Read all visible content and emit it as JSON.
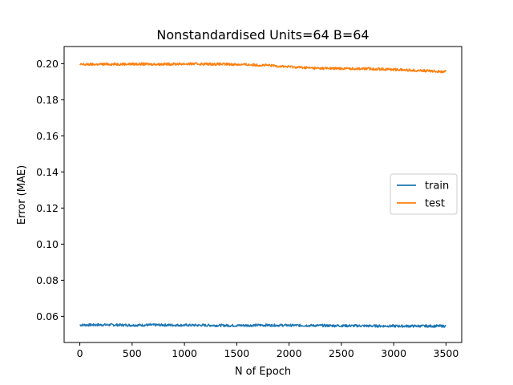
{
  "chart_data": {
    "type": "line",
    "title": "Nonstandardised Units=64 B=64",
    "xlabel": "N of Epoch",
    "ylabel": "Error (MAE)",
    "xlim": [
      -150,
      3650
    ],
    "ylim": [
      0.0455,
      0.2095
    ],
    "xticks": [
      0,
      500,
      1000,
      1500,
      2000,
      2500,
      3000,
      3500
    ],
    "xtick_labels": [
      "0",
      "500",
      "1000",
      "1500",
      "2000",
      "2500",
      "3000",
      "3500"
    ],
    "yticks": [
      0.06,
      0.08,
      0.1,
      0.12,
      0.14,
      0.16,
      0.18,
      0.2
    ],
    "ytick_labels": [
      "0.06",
      "0.08",
      "0.10",
      "0.12",
      "0.14",
      "0.16",
      "0.18",
      "0.20"
    ],
    "grid": false,
    "legend_position": "center-right",
    "series": [
      {
        "name": "train",
        "color": "#1f77b4",
        "x": [
          0,
          250,
          500,
          750,
          1000,
          1250,
          1500,
          1750,
          2000,
          2250,
          2500,
          2750,
          3000,
          3250,
          3500
        ],
        "y": [
          0.0552,
          0.0553,
          0.0551,
          0.0552,
          0.0551,
          0.055,
          0.0549,
          0.0551,
          0.055,
          0.0549,
          0.0548,
          0.0547,
          0.0546,
          0.0546,
          0.0546
        ]
      },
      {
        "name": "test",
        "color": "#ff7f0e",
        "x": [
          0,
          250,
          500,
          750,
          1000,
          1250,
          1500,
          1750,
          2000,
          2250,
          2500,
          2750,
          3000,
          3250,
          3500
        ],
        "y": [
          0.1995,
          0.1997,
          0.1998,
          0.1997,
          0.1999,
          0.1998,
          0.1996,
          0.1992,
          0.1983,
          0.1975,
          0.1973,
          0.1972,
          0.1968,
          0.1962,
          0.1955
        ]
      }
    ]
  }
}
